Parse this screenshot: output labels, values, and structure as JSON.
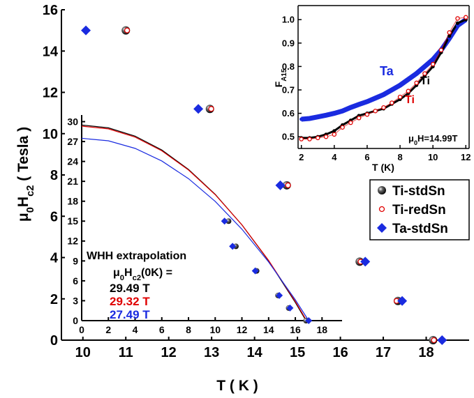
{
  "chart_data": [
    {
      "type": "scatter",
      "xlabel": "T ( K )",
      "ylabel": [
        {
          "text": "μ"
        },
        {
          "text": "0",
          "sub": true
        },
        {
          "text": "H"
        },
        {
          "text": "c2",
          "sub": true
        },
        {
          "text": " ( Tesla )"
        }
      ],
      "xlim": [
        9.5,
        19
      ],
      "ylim": [
        0,
        16
      ],
      "xticks": [
        10,
        11,
        12,
        13,
        14,
        15,
        16,
        17,
        18
      ],
      "yticks": [
        0,
        2,
        4,
        6,
        8,
        10,
        12,
        14,
        16
      ],
      "legend": "right",
      "series": [
        {
          "name": "Ti-stdSn",
          "color": "#000000",
          "marker": "ball",
          "x": [
            11.0,
            12.96,
            14.75,
            16.45,
            17.34,
            18.16
          ],
          "values": [
            15,
            11.2,
            7.5,
            3.8,
            1.9,
            0
          ]
        },
        {
          "name": "Ti-redSn",
          "color": "#e00000",
          "marker": "open",
          "x": [
            11.03,
            12.99,
            14.78,
            16.47,
            17.31,
            18.18
          ],
          "values": [
            15,
            11.2,
            7.5,
            3.8,
            1.9,
            0
          ]
        },
        {
          "name": "Ta-stdSn",
          "color": "#1a2be0",
          "marker": "diamond",
          "x": [
            10.07,
            12.69,
            14.6,
            16.58,
            17.44,
            18.37
          ],
          "values": [
            15,
            11.2,
            7.5,
            3.8,
            1.9,
            0
          ]
        }
      ]
    },
    {
      "type": "line",
      "xlim": [
        0,
        19.5
      ],
      "ylim": [
        0,
        31
      ],
      "xticks": [
        0,
        2,
        4,
        6,
        8,
        10,
        12,
        14,
        16,
        18
      ],
      "yticks": [
        0,
        3,
        6,
        9,
        12,
        15,
        18,
        21,
        24,
        27,
        30
      ],
      "series": [
        {
          "color": "#000000",
          "x": [
            0,
            2,
            4,
            6,
            8,
            10,
            12,
            14,
            16,
            16.8
          ],
          "values": [
            29.49,
            29.07,
            27.82,
            25.73,
            22.8,
            19.04,
            14.44,
            9.01,
            2.74,
            0
          ]
        },
        {
          "color": "#e00000",
          "x": [
            0,
            2,
            4,
            6,
            8,
            10,
            12,
            14,
            16,
            16.85
          ],
          "values": [
            29.32,
            28.91,
            27.67,
            25.6,
            22.71,
            18.99,
            14.45,
            9.08,
            2.89,
            0
          ]
        },
        {
          "color": "#1a2be0",
          "x": [
            0,
            2,
            4,
            6,
            8,
            10,
            12,
            14,
            16,
            17
          ],
          "values": [
            27.49,
            27.11,
            25.97,
            24.07,
            21.4,
            17.98,
            13.79,
            8.84,
            3.14,
            0
          ]
        }
      ],
      "points": [
        {
          "color": "#000000",
          "marker": "ball",
          "x": [
            11.0,
            11.55,
            13.1,
            14.7,
            15.5,
            16.8
          ],
          "values": [
            15,
            11.2,
            7.5,
            3.8,
            1.9,
            0
          ]
        },
        {
          "color": "#1a2be0",
          "marker": "diamond",
          "x": [
            10.7,
            11.3,
            13.0,
            14.8,
            15.6,
            17.0
          ],
          "values": [
            15,
            11.2,
            7.5,
            3.8,
            1.9,
            0
          ]
        }
      ],
      "annotation_title": "WHH extrapolation",
      "formula": [
        {
          "text": "μ"
        },
        {
          "text": "0",
          "sub": true
        },
        {
          "text": "H"
        },
        {
          "text": "c2",
          "sub": true
        },
        {
          "text": "(0K) ="
        }
      ],
      "results": [
        {
          "text": "29.49 T",
          "color": "#000000"
        },
        {
          "text": "29.32 T",
          "color": "#e00000"
        },
        {
          "text": "27.49 T",
          "color": "#1a2be0"
        }
      ]
    },
    {
      "type": "scatter",
      "xlabel": "T (K)",
      "ylabel": [
        {
          "text": "F"
        },
        {
          "text": "A15",
          "sub": true
        }
      ],
      "xlim": [
        1.8,
        12.2
      ],
      "ylim": [
        0.45,
        1.06
      ],
      "xticks": [
        2,
        4,
        6,
        8,
        10,
        12
      ],
      "yticks": [
        0.5,
        0.6,
        0.7,
        0.8,
        0.9,
        {
          "value": 1,
          "label": "1.0"
        }
      ],
      "series": [
        {
          "color": "#1a2be0",
          "marker": "dot",
          "x": [
            2,
            2.5,
            3,
            3.5,
            4,
            4.5,
            5,
            5.5,
            6,
            6.5,
            7,
            7.5,
            8,
            8.5,
            9,
            9.5,
            10,
            10.5,
            11,
            11.5,
            12
          ],
          "values": [
            0.575,
            0.578,
            0.585,
            0.592,
            0.6,
            0.61,
            0.625,
            0.638,
            0.65,
            0.665,
            0.68,
            0.7,
            0.72,
            0.745,
            0.77,
            0.8,
            0.83,
            0.87,
            0.92,
            0.975,
            1.0
          ]
        },
        {
          "color": "#000000",
          "marker": "dot",
          "x": [
            2,
            2.5,
            3,
            3.5,
            4,
            4.5,
            5,
            5.5,
            6,
            6.5,
            7,
            7.5,
            8,
            8.5,
            9,
            9.5,
            10,
            10.5,
            11,
            11.5,
            12
          ],
          "values": [
            0.495,
            0.495,
            0.5,
            0.51,
            0.525,
            0.55,
            0.57,
            0.59,
            0.6,
            0.61,
            0.62,
            0.64,
            0.66,
            0.685,
            0.72,
            0.76,
            0.8,
            0.86,
            0.93,
            0.985,
            1.0
          ]
        },
        {
          "color": "#e00000",
          "marker": "open",
          "x": [
            2,
            2.5,
            3,
            3.5,
            4,
            4.5,
            5,
            5.5,
            6,
            6.5,
            7,
            7.5,
            8,
            8.5,
            9,
            9.5,
            10,
            10.5,
            11,
            11.5,
            12
          ],
          "values": [
            0.49,
            0.49,
            0.495,
            0.5,
            0.51,
            0.54,
            0.56,
            0.58,
            0.595,
            0.61,
            0.625,
            0.645,
            0.67,
            0.695,
            0.73,
            0.77,
            0.81,
            0.87,
            0.945,
            1.005,
            1.01
          ]
        }
      ],
      "labels": [
        {
          "text": "Ta",
          "color": "#1a2be0"
        },
        {
          "text": "Ti",
          "color": "#000000"
        },
        {
          "text": "Ti",
          "color": "#e00000"
        }
      ],
      "annotation": [
        {
          "text": "μ"
        },
        {
          "text": "0",
          "sub": true
        },
        {
          "text": "H=14.99T"
        }
      ]
    }
  ]
}
